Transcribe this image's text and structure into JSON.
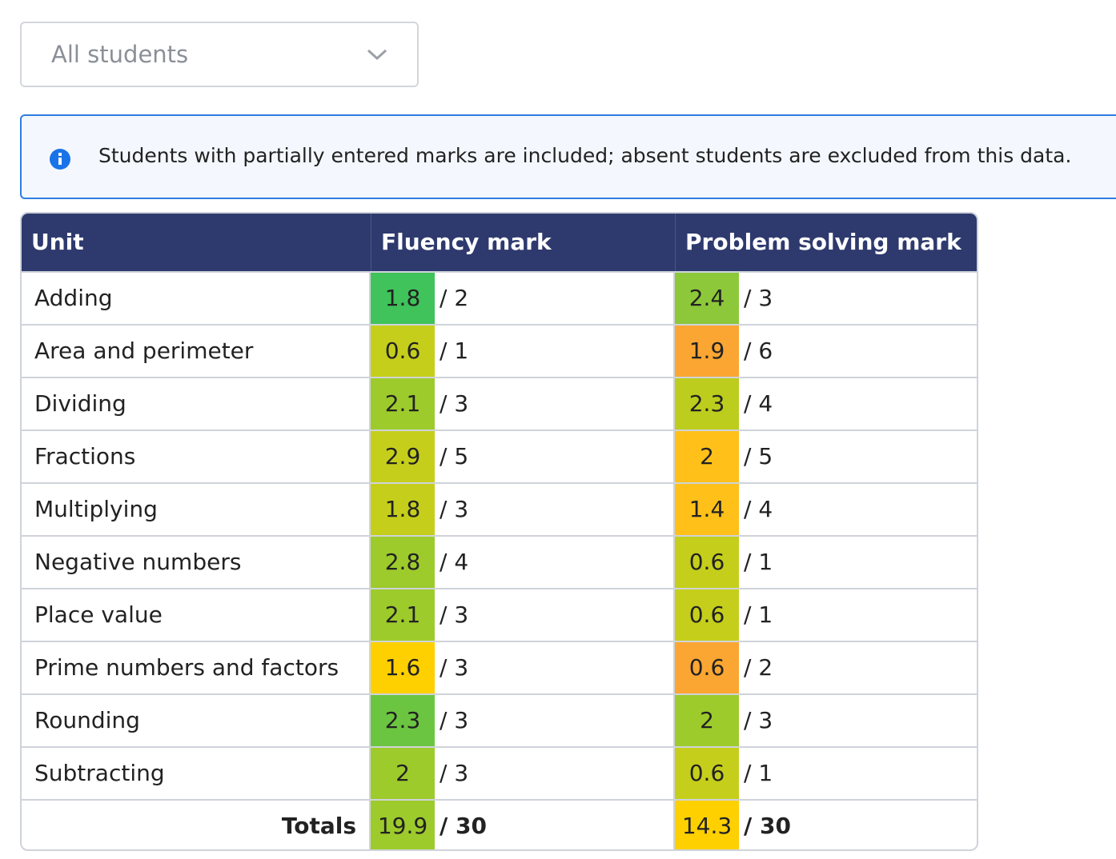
{
  "filter": {
    "selected": "All students"
  },
  "notice": {
    "text": "Students with partially entered marks are included; absent students are excluded from this data."
  },
  "table": {
    "header": [
      "Unit",
      "Fluency mark",
      "Problem solving mark"
    ],
    "rows": [
      {
        "unit": "Adding",
        "fluency": {
          "score": 1.8,
          "max": "/ 2",
          "color": "#3fc35a"
        },
        "problem_solving": {
          "score": 2.4,
          "max": "/ 3",
          "color": "#8cc83a"
        }
      },
      {
        "unit": "Area and perimeter",
        "fluency": {
          "score": 0.6,
          "max": "/ 1",
          "color": "#c5cf1b"
        },
        "problem_solving": {
          "score": 1.9,
          "max": "/ 6",
          "color": "#fba632"
        }
      },
      {
        "unit": "Dividing",
        "fluency": {
          "score": 2.1,
          "max": "/ 3",
          "color": "#9dcb2c"
        },
        "problem_solving": {
          "score": 2.3,
          "max": "/ 4",
          "color": "#bccd1e"
        }
      },
      {
        "unit": "Fractions",
        "fluency": {
          "score": 2.9,
          "max": "/ 5",
          "color": "#c5cf1b"
        },
        "problem_solving": {
          "score": 2,
          "max": "/ 5",
          "color": "#ffc01a"
        }
      },
      {
        "unit": "Multiplying",
        "fluency": {
          "score": 1.8,
          "max": "/ 3",
          "color": "#c5cf1b"
        },
        "problem_solving": {
          "score": 1.4,
          "max": "/ 4",
          "color": "#ffc01a"
        }
      },
      {
        "unit": "Negative numbers",
        "fluency": {
          "score": 2.8,
          "max": "/ 4",
          "color": "#9dcb2c"
        },
        "problem_solving": {
          "score": 0.6,
          "max": "/ 1",
          "color": "#c5cf1b"
        }
      },
      {
        "unit": "Place value",
        "fluency": {
          "score": 2.1,
          "max": "/ 3",
          "color": "#9dcb2c"
        },
        "problem_solving": {
          "score": 0.6,
          "max": "/ 1",
          "color": "#c5cf1b"
        }
      },
      {
        "unit": "Prime numbers and factors",
        "fluency": {
          "score": 1.6,
          "max": "/ 3",
          "color": "#ffd000"
        },
        "problem_solving": {
          "score": 0.6,
          "max": "/ 2",
          "color": "#fba632"
        }
      },
      {
        "unit": "Rounding",
        "fluency": {
          "score": 2.3,
          "max": "/ 3",
          "color": "#6cc541"
        },
        "problem_solving": {
          "score": 2,
          "max": "/ 3",
          "color": "#9dcb2c"
        }
      },
      {
        "unit": "Subtracting",
        "fluency": {
          "score": 2,
          "max": "/ 3",
          "color": "#9dcb2c"
        },
        "problem_solving": {
          "score": 0.6,
          "max": "/ 1",
          "color": "#c5cf1b"
        }
      }
    ],
    "totals": {
      "label": "Totals",
      "fluency": {
        "score": 19.9,
        "max": "/ 30",
        "color": "#9dcb2c"
      },
      "problem_solving": {
        "score": 14.3,
        "max": "/ 30",
        "color": "#ffd000"
      }
    }
  }
}
